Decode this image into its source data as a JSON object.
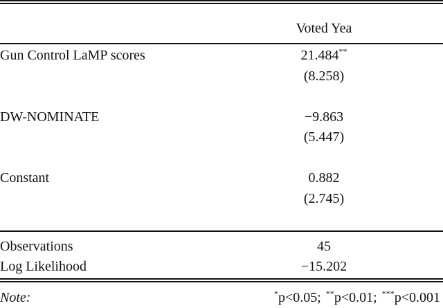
{
  "header": {
    "column": "Voted Yea"
  },
  "table": {
    "rows": [
      {
        "label": "Gun Control LaMP scores",
        "value": "21.484",
        "stars": "**",
        "se": "(8.258)"
      },
      {
        "label": "DW-NOMINATE",
        "value": "−9.863",
        "se": "(5.447)"
      },
      {
        "label": "Constant",
        "value": "0.882",
        "se": "(2.745)"
      }
    ]
  },
  "stats": [
    {
      "label": "Observations",
      "value": "45"
    },
    {
      "label": "Log Likelihood",
      "value": "−15.202"
    }
  ],
  "note": {
    "label": "Note:",
    "items": [
      {
        "sup": "*",
        "text": "p<0.05;"
      },
      {
        "sup": "**",
        "text": "p<0.01;"
      },
      {
        "sup": "***",
        "text": "p<0.001"
      }
    ]
  }
}
